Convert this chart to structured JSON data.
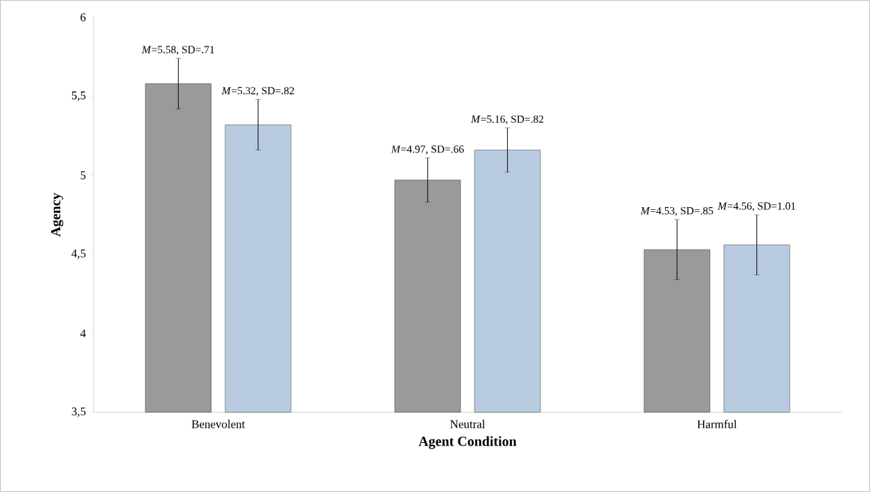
{
  "chart_data": {
    "type": "bar",
    "xlabel": "Agent Condition",
    "ylabel": "Agency",
    "categories": [
      "Benevolent",
      "Neutral",
      "Harmful"
    ],
    "ylim": [
      3.5,
      6
    ],
    "yticks": [
      {
        "value": 3.5,
        "label": "3,5"
      },
      4,
      {
        "value": 4.5,
        "label": "4,5"
      },
      5,
      {
        "value": 5.5,
        "label": "5,5"
      },
      6
    ],
    "series": [
      {
        "color": "#9a9a9a",
        "values": [
          5.58,
          4.97,
          4.53
        ],
        "errors": [
          0.16,
          0.14,
          0.19
        ],
        "value_labels": [
          "*M*=5.58, SD=.71",
          "*M*=4.97, SD=.66",
          "*M*=4.53, SD=.85"
        ]
      },
      {
        "color": "#b8cbe0",
        "values": [
          5.32,
          5.16,
          4.56
        ],
        "errors": [
          0.16,
          0.14,
          0.19
        ],
        "value_labels": [
          "*M*=5.32, SD=.82",
          "*M*=5.16, SD=.82",
          "*M*=4.56, SD=1.01"
        ]
      }
    ]
  }
}
